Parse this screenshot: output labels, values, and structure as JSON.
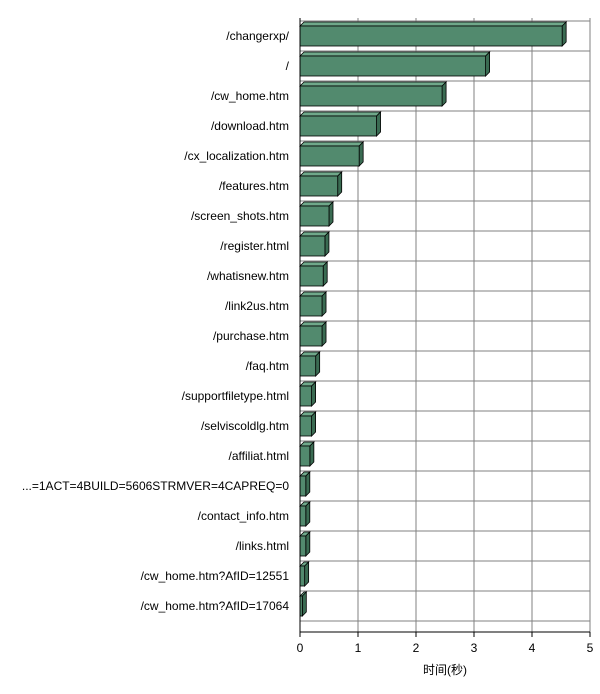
{
  "chart_data": {
    "type": "bar",
    "orientation": "horizontal",
    "categories": [
      "/changerxp/",
      "/",
      "/cw_home.htm",
      "/download.htm",
      "/cx_localization.htm",
      "/features.htm",
      "/screen_shots.htm",
      "/register.html",
      "/whatisnew.htm",
      "/link2us.htm",
      "/purchase.htm",
      "/faq.htm",
      "/supportfiletype.html",
      "/selviscoldlg.htm",
      "/affiliat.html",
      "...=1ACT=4BUILD=5606STRMVER=4CAPREQ=0",
      "/contact_info.htm",
      "/links.html",
      "/cw_home.htm?AfID=12551",
      "/cw_home.htm?AfID=17064"
    ],
    "values": [
      4.52,
      3.2,
      2.45,
      1.32,
      1.02,
      0.65,
      0.5,
      0.43,
      0.4,
      0.38,
      0.38,
      0.27,
      0.2,
      0.2,
      0.17,
      0.1,
      0.1,
      0.1,
      0.08,
      0.04
    ],
    "xlabel": "时间(秒)",
    "xlim": [
      0,
      5
    ],
    "xticks": [
      0,
      1,
      2,
      3,
      4,
      5
    ],
    "grid": "vertical",
    "colors": {
      "bar_front": "#528a6e",
      "bar_top": "#6fa88a",
      "bar_side": "#3a6b52",
      "bar_edge": "#000000",
      "grid": "#808080"
    }
  }
}
